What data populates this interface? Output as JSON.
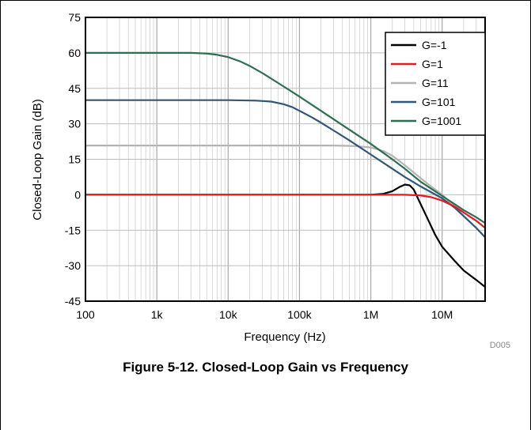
{
  "caption": "Figure 5-12. Closed-Loop Gain vs Frequency",
  "code": "D005",
  "chart_data": {
    "type": "line",
    "title": "",
    "xlabel": "Frequency (Hz)",
    "ylabel": "Closed-Loop Gain (dB)",
    "xscale": "log",
    "xlim": [
      100,
      40000000
    ],
    "ylim": [
      -45,
      75
    ],
    "xticks": [
      {
        "value": 100,
        "label": "100"
      },
      {
        "value": 1000,
        "label": "1k"
      },
      {
        "value": 10000,
        "label": "10k"
      },
      {
        "value": 100000,
        "label": "100k"
      },
      {
        "value": 1000000,
        "label": "1M"
      },
      {
        "value": 10000000,
        "label": "10M"
      }
    ],
    "yticks": [
      {
        "value": 75,
        "label": "75"
      },
      {
        "value": 60,
        "label": "60"
      },
      {
        "value": 45,
        "label": "45"
      },
      {
        "value": 30,
        "label": "30"
      },
      {
        "value": 15,
        "label": "15"
      },
      {
        "value": 0,
        "label": "0"
      },
      {
        "value": -15,
        "label": "-15"
      },
      {
        "value": -30,
        "label": "-30"
      },
      {
        "value": -45,
        "label": "-45"
      }
    ],
    "grid": true,
    "legend_position": "top-right",
    "series": [
      {
        "name": "G=-1",
        "color": "#000000",
        "points": [
          [
            100,
            0
          ],
          [
            1000000,
            0
          ],
          [
            1500000,
            0.4
          ],
          [
            2000000,
            1.5
          ],
          [
            2500000,
            3.2
          ],
          [
            3000000,
            4.3
          ],
          [
            3500000,
            4.0
          ],
          [
            4000000,
            2.2
          ],
          [
            5000000,
            -4
          ],
          [
            6000000,
            -9
          ],
          [
            8000000,
            -17
          ],
          [
            10000000,
            -22
          ],
          [
            15000000,
            -28
          ],
          [
            20000000,
            -32
          ],
          [
            30000000,
            -36
          ],
          [
            40000000,
            -39
          ]
        ]
      },
      {
        "name": "G=1",
        "color": "#e31b23",
        "points": [
          [
            100,
            0
          ],
          [
            1000000,
            0
          ],
          [
            3000000,
            0
          ],
          [
            5000000,
            -0.3
          ],
          [
            7000000,
            -1.0
          ],
          [
            10000000,
            -2.5
          ],
          [
            15000000,
            -5
          ],
          [
            20000000,
            -7.5
          ],
          [
            30000000,
            -11
          ],
          [
            40000000,
            -14
          ]
        ]
      },
      {
        "name": "G=11",
        "color": "#b4b4b4",
        "points": [
          [
            100,
            20.8
          ],
          [
            300000,
            20.8
          ],
          [
            600000,
            20.6
          ],
          [
            1000000,
            20.0
          ],
          [
            1500000,
            18.5
          ],
          [
            2000000,
            16.5
          ],
          [
            3000000,
            12.5
          ],
          [
            5000000,
            7
          ],
          [
            7000000,
            3.5
          ],
          [
            10000000,
            0
          ],
          [
            15000000,
            -5
          ],
          [
            20000000,
            -9
          ],
          [
            30000000,
            -14
          ],
          [
            40000000,
            -18
          ]
        ]
      },
      {
        "name": "G=101",
        "color": "#2e5779",
        "points": [
          [
            100,
            40
          ],
          [
            10000,
            40
          ],
          [
            25000,
            39.8
          ],
          [
            40000,
            39.4
          ],
          [
            60000,
            38.3
          ],
          [
            80000,
            37
          ],
          [
            100000,
            35.5
          ],
          [
            150000,
            32.7
          ],
          [
            200000,
            30.5
          ],
          [
            300000,
            27.2
          ],
          [
            500000,
            23
          ],
          [
            1000000,
            17
          ],
          [
            2000000,
            11
          ],
          [
            3000000,
            7.5
          ],
          [
            5000000,
            3.5
          ],
          [
            10000000,
            -1.5
          ],
          [
            15000000,
            -5.5
          ],
          [
            20000000,
            -9
          ],
          [
            30000000,
            -14
          ],
          [
            40000000,
            -18
          ]
        ]
      },
      {
        "name": "G=1001",
        "color": "#2e6e50",
        "points": [
          [
            100,
            60
          ],
          [
            3000,
            60
          ],
          [
            5000,
            59.7
          ],
          [
            7000,
            59.2
          ],
          [
            10000,
            58.2
          ],
          [
            15000,
            56.3
          ],
          [
            20000,
            54.5
          ],
          [
            30000,
            51.5
          ],
          [
            50000,
            47.3
          ],
          [
            100000,
            41.5
          ],
          [
            200000,
            35.5
          ],
          [
            500000,
            27.5
          ],
          [
            1000000,
            21.5
          ],
          [
            2000000,
            15
          ],
          [
            3000000,
            11
          ],
          [
            5000000,
            5.5
          ],
          [
            10000000,
            -0.5
          ],
          [
            15000000,
            -4
          ],
          [
            20000000,
            -6.5
          ],
          [
            30000000,
            -9.5
          ],
          [
            40000000,
            -12
          ]
        ]
      }
    ]
  }
}
